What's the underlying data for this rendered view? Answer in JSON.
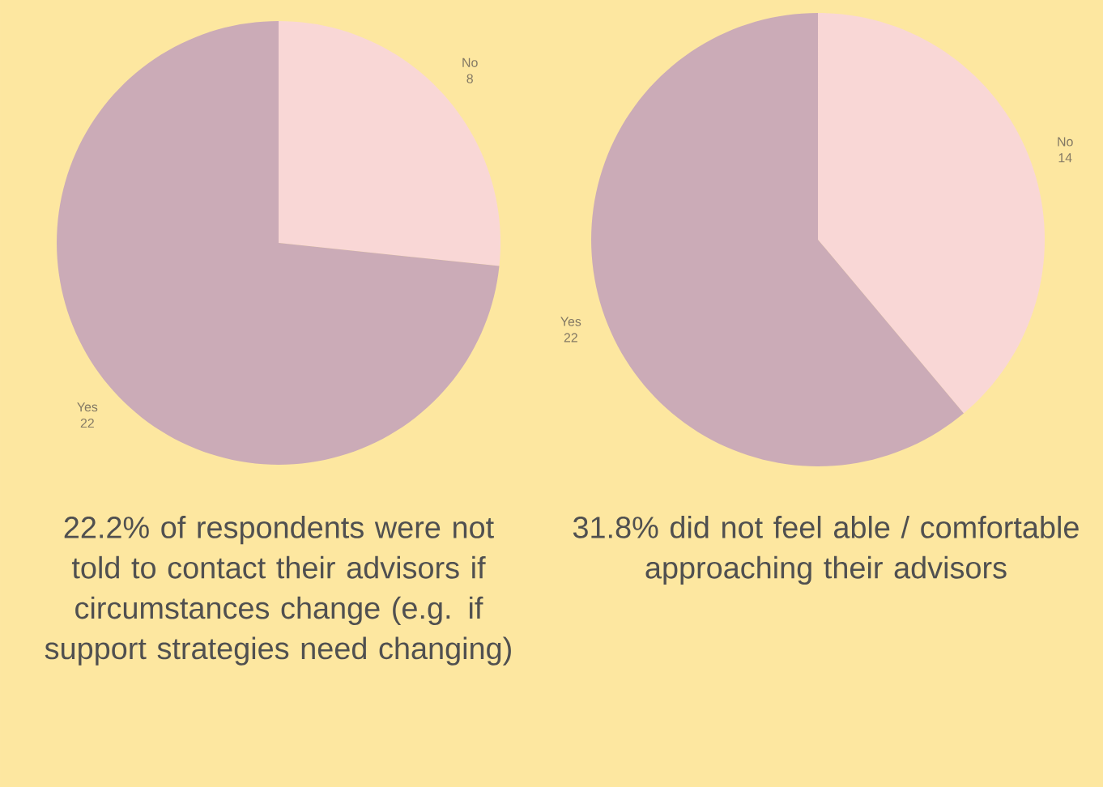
{
  "chart_data": [
    {
      "type": "pie",
      "categories": [
        "No",
        "Yes"
      ],
      "values": [
        8,
        22
      ],
      "colors": [
        "#f9d7d6",
        "#cbabb7"
      ],
      "data_labels": true,
      "annotations": [
        "22.2% of respondents were not told to contact their advisors if circumstances change (e.g. if support strategies need changing)"
      ]
    },
    {
      "type": "pie",
      "categories": [
        "No",
        "Yes"
      ],
      "values": [
        14,
        22
      ],
      "colors": [
        "#f9d7d6",
        "#cbabb7"
      ],
      "data_labels": true,
      "annotations": [
        "31.8% did not feel able / comfortable approaching their advisors"
      ]
    }
  ]
}
